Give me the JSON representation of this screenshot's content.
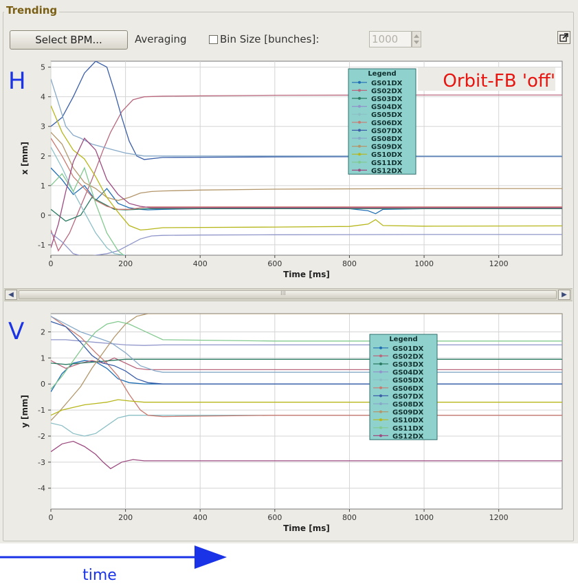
{
  "panel": {
    "title": "Trending",
    "select_bpm_label": "Select BPM...",
    "averaging_label": "Averaging",
    "averaging_checked": false,
    "bin_size_label": "Bin Size [bunches]:",
    "bin_size_value": "1000",
    "scrollbar_thumb_grip": "III"
  },
  "annotations": {
    "h_label": "H",
    "v_label": "V",
    "orbit_fb_label": "Orbit-FB 'off'",
    "time_label": "time"
  },
  "colors": {
    "panel_bg": "#ecebe6",
    "legend_bg": "#8fd1cd",
    "annotation_blue": "#1a33e6",
    "annotation_red": "#e8140f",
    "GS01DX": "#1f6eb4",
    "GS02DX": "#b8677d",
    "GS03DX": "#2a7a62",
    "GS04DX": "#8f95c9",
    "GS05DX": "#8bbfc6",
    "GS06DX": "#c97a70",
    "GS07DX": "#3a5ea8",
    "GS08DX": "#86a9c8",
    "GS09DX": "#b3966a",
    "GS10DX": "#b6b61a",
    "GS11DX": "#82c98e",
    "GS12DX": "#9c4a80"
  },
  "chart_data": [
    {
      "type": "line",
      "xlabel": "Time [ms]",
      "ylabel": "x [mm]",
      "xlim": [
        0,
        1370
      ],
      "ylim": [
        -1.35,
        5.2
      ],
      "x_ticks": [
        0,
        200,
        400,
        600,
        800,
        1000,
        1200
      ],
      "y_ticks": [
        -1,
        0,
        1,
        2,
        3,
        4,
        5
      ],
      "grid": true,
      "legend_title": "Legend",
      "legend_position": "top-right",
      "series": [
        {
          "name": "GS01DX",
          "x": [
            0,
            30,
            60,
            90,
            120,
            150,
            180,
            210,
            240,
            260,
            300,
            400,
            600,
            800,
            850,
            870,
            890,
            1000,
            1200,
            1370
          ],
          "y": [
            1.6,
            1.2,
            0.7,
            1.0,
            0.5,
            0.9,
            0.4,
            0.25,
            0.2,
            0.18,
            0.2,
            0.22,
            0.24,
            0.22,
            0.15,
            0.05,
            0.2,
            0.22,
            0.22,
            0.22
          ]
        },
        {
          "name": "GS02DX",
          "x": [
            0,
            20,
            50,
            80,
            110,
            140,
            160,
            190,
            220,
            250,
            300,
            600,
            1000,
            1370
          ],
          "y": [
            -0.5,
            -1.2,
            -0.6,
            0.3,
            1.2,
            2.2,
            2.8,
            3.5,
            3.9,
            4.0,
            4.02,
            4.05,
            4.06,
            4.06
          ]
        },
        {
          "name": "GS03DX",
          "x": [
            0,
            40,
            80,
            110,
            140,
            170,
            200,
            230,
            260,
            300,
            600,
            1000,
            1370
          ],
          "y": [
            0.2,
            -0.2,
            0.0,
            0.6,
            0.4,
            0.2,
            0.18,
            0.2,
            0.22,
            0.22,
            0.22,
            0.22,
            0.22
          ]
        },
        {
          "name": "GS04DX",
          "x": [
            0,
            30,
            60,
            90,
            120,
            150,
            180,
            210,
            240,
            270,
            300,
            400,
            600,
            1000,
            1370
          ],
          "y": [
            -0.6,
            -0.9,
            -1.3,
            -1.4,
            -1.35,
            -1.3,
            -1.2,
            -1.0,
            -0.8,
            -0.7,
            -0.68,
            -0.67,
            -0.66,
            -0.65,
            -0.65
          ]
        },
        {
          "name": "GS05DX",
          "x": [
            0,
            30,
            60,
            90,
            120,
            150,
            170,
            200
          ],
          "y": [
            2.3,
            1.6,
            0.8,
            0.1,
            -0.6,
            -1.1,
            -1.3,
            -1.35
          ]
        },
        {
          "name": "GS06DX",
          "x": [
            0,
            30,
            60,
            90,
            120,
            150,
            180,
            210,
            240,
            260,
            300,
            600,
            1000,
            1370
          ],
          "y": [
            2.6,
            2.0,
            1.3,
            0.9,
            0.5,
            0.3,
            0.2,
            0.2,
            0.25,
            0.28,
            0.28,
            0.28,
            0.28,
            0.28
          ]
        },
        {
          "name": "GS07DX",
          "x": [
            0,
            30,
            60,
            90,
            120,
            150,
            170,
            190,
            210,
            230,
            250,
            300,
            600,
            1000,
            1370
          ],
          "y": [
            3.0,
            3.3,
            4.0,
            4.8,
            5.2,
            5.0,
            4.2,
            3.3,
            2.5,
            2.0,
            1.88,
            1.95,
            1.97,
            1.98,
            1.98
          ]
        },
        {
          "name": "GS08DX",
          "x": [
            0,
            20,
            40,
            60,
            80,
            110,
            140,
            170,
            200,
            250,
            300,
            600,
            1000,
            1370
          ],
          "y": [
            4.6,
            3.8,
            3.0,
            2.7,
            2.6,
            2.4,
            2.3,
            2.2,
            2.1,
            2.0,
            2.0,
            2.0,
            2.0,
            2.0
          ]
        },
        {
          "name": "GS09DX",
          "x": [
            0,
            30,
            60,
            90,
            120,
            150,
            180,
            210,
            240,
            270,
            300,
            400,
            600,
            1000,
            1370
          ],
          "y": [
            2.8,
            2.4,
            1.6,
            1.1,
            0.9,
            0.6,
            0.5,
            0.6,
            0.75,
            0.8,
            0.82,
            0.85,
            0.88,
            0.9,
            0.9
          ]
        },
        {
          "name": "GS10DX",
          "x": [
            0,
            30,
            60,
            90,
            120,
            150,
            180,
            210,
            240,
            260,
            300,
            600,
            800,
            850,
            870,
            890,
            1000,
            1370
          ],
          "y": [
            3.7,
            2.8,
            2.2,
            1.9,
            1.3,
            0.6,
            0.1,
            -0.35,
            -0.5,
            -0.48,
            -0.42,
            -0.4,
            -0.38,
            -0.3,
            -0.15,
            -0.35,
            -0.37,
            -0.36
          ]
        },
        {
          "name": "GS11DX",
          "x": [
            0,
            30,
            60,
            90,
            120,
            150,
            180,
            195
          ],
          "y": [
            1.0,
            1.4,
            0.8,
            1.6,
            0.4,
            -0.6,
            -1.2,
            -1.35
          ]
        },
        {
          "name": "GS12DX",
          "x": [
            0,
            20,
            40,
            60,
            90,
            120,
            150,
            180,
            210,
            240,
            270,
            300,
            600,
            1000,
            1370
          ],
          "y": [
            -1.1,
            -0.3,
            0.8,
            1.8,
            2.6,
            2.2,
            1.2,
            0.7,
            0.4,
            0.3,
            0.25,
            0.25,
            0.25,
            0.25,
            0.25
          ]
        }
      ]
    },
    {
      "type": "line",
      "xlabel": "Time [ms]",
      "ylabel": "y [mm]",
      "xlim": [
        0,
        1370
      ],
      "ylim": [
        -4.8,
        2.7
      ],
      "x_ticks": [
        0,
        200,
        400,
        600,
        800,
        1000,
        1200
      ],
      "y_ticks": [
        -4,
        -3,
        -2,
        -1,
        0,
        1,
        2
      ],
      "grid": true,
      "legend_title": "Legend",
      "legend_position": "center-right",
      "series": [
        {
          "name": "GS01DX",
          "x": [
            0,
            30,
            60,
            90,
            120,
            150,
            180,
            210,
            250,
            300,
            600,
            1000,
            1370
          ],
          "y": [
            -0.3,
            0.4,
            0.8,
            0.9,
            0.85,
            0.6,
            0.2,
            0.05,
            0.0,
            0.0,
            0.0,
            0.0,
            0.0
          ]
        },
        {
          "name": "GS02DX",
          "x": [
            0,
            40,
            80,
            110,
            140,
            170,
            200,
            230,
            260,
            300,
            600,
            1000,
            1370
          ],
          "y": [
            0.9,
            0.6,
            0.8,
            0.9,
            0.8,
            1.0,
            0.8,
            0.6,
            0.55,
            0.55,
            0.55,
            0.55,
            0.55
          ]
        },
        {
          "name": "GS03DX",
          "x": [
            0,
            40,
            80,
            120,
            160,
            200,
            250,
            300,
            600,
            1000,
            1370
          ],
          "y": [
            0.8,
            0.75,
            0.8,
            0.85,
            0.9,
            0.95,
            0.95,
            0.95,
            0.95,
            0.95,
            0.95
          ]
        },
        {
          "name": "GS04DX",
          "x": [
            0,
            40,
            80,
            120,
            160,
            200,
            250,
            300,
            600,
            1000,
            1370
          ],
          "y": [
            1.7,
            1.7,
            1.65,
            1.6,
            1.55,
            1.5,
            1.48,
            1.5,
            1.5,
            1.5,
            1.5
          ]
        },
        {
          "name": "GS05DX",
          "x": [
            0,
            30,
            60,
            90,
            120,
            150,
            180,
            210,
            250,
            300,
            600,
            1000,
            1370
          ],
          "y": [
            -1.5,
            -1.6,
            -1.9,
            -2.0,
            -1.9,
            -1.6,
            -1.3,
            -1.2,
            -1.2,
            -1.2,
            -1.2,
            -1.2,
            -1.2
          ]
        },
        {
          "name": "GS06DX",
          "x": [
            0,
            40,
            80,
            120,
            150,
            180,
            210,
            240,
            260,
            300,
            600,
            1000,
            1370
          ],
          "y": [
            2.6,
            2.2,
            1.8,
            1.2,
            0.8,
            0.3,
            -0.4,
            -1.0,
            -1.2,
            -1.25,
            -1.2,
            -1.2,
            -1.2
          ]
        },
        {
          "name": "GS07DX",
          "x": [
            0,
            40,
            80,
            110,
            140,
            170,
            200,
            230,
            260,
            300,
            600,
            1000,
            1370
          ],
          "y": [
            2.4,
            2.2,
            1.6,
            1.1,
            0.8,
            0.7,
            0.5,
            0.2,
            0.05,
            0.0,
            0.0,
            0.0,
            0.0
          ]
        },
        {
          "name": "GS08DX",
          "x": [
            0,
            40,
            80,
            120,
            160,
            200,
            240,
            280,
            300,
            600,
            1000,
            1370
          ],
          "y": [
            2.6,
            2.3,
            2.0,
            1.8,
            1.6,
            1.2,
            0.7,
            0.5,
            0.45,
            0.45,
            0.45,
            0.45
          ]
        },
        {
          "name": "GS09DX",
          "x": [
            0,
            20,
            50,
            80,
            110,
            140,
            170,
            200,
            230,
            260,
            300,
            600,
            1000,
            1370
          ],
          "y": [
            -1.4,
            -1.1,
            -0.6,
            -0.1,
            0.6,
            1.2,
            1.8,
            2.3,
            2.6,
            2.7,
            2.7,
            2.7,
            2.7,
            2.7
          ]
        },
        {
          "name": "GS10DX",
          "x": [
            0,
            30,
            60,
            90,
            120,
            150,
            180,
            210,
            250,
            300,
            600,
            1000,
            1370
          ],
          "y": [
            -1.2,
            -1.0,
            -0.9,
            -0.8,
            -0.75,
            -0.7,
            -0.6,
            -0.65,
            -0.7,
            -0.7,
            -0.7,
            -0.7,
            -0.7
          ]
        },
        {
          "name": "GS11DX",
          "x": [
            0,
            30,
            60,
            90,
            120,
            150,
            180,
            210,
            240,
            270,
            300,
            600,
            1000,
            1370
          ],
          "y": [
            -0.2,
            0.3,
            0.9,
            1.5,
            2.0,
            2.3,
            2.4,
            2.3,
            2.1,
            1.9,
            1.7,
            1.65,
            1.65,
            1.65
          ]
        },
        {
          "name": "GS12DX",
          "x": [
            0,
            30,
            60,
            90,
            120,
            140,
            160,
            190,
            220,
            250,
            300,
            600,
            1000,
            1370
          ],
          "y": [
            -2.6,
            -2.3,
            -2.2,
            -2.4,
            -2.7,
            -3.0,
            -3.25,
            -3.0,
            -2.9,
            -2.95,
            -2.95,
            -2.95,
            -2.95,
            -2.95
          ]
        }
      ]
    }
  ]
}
